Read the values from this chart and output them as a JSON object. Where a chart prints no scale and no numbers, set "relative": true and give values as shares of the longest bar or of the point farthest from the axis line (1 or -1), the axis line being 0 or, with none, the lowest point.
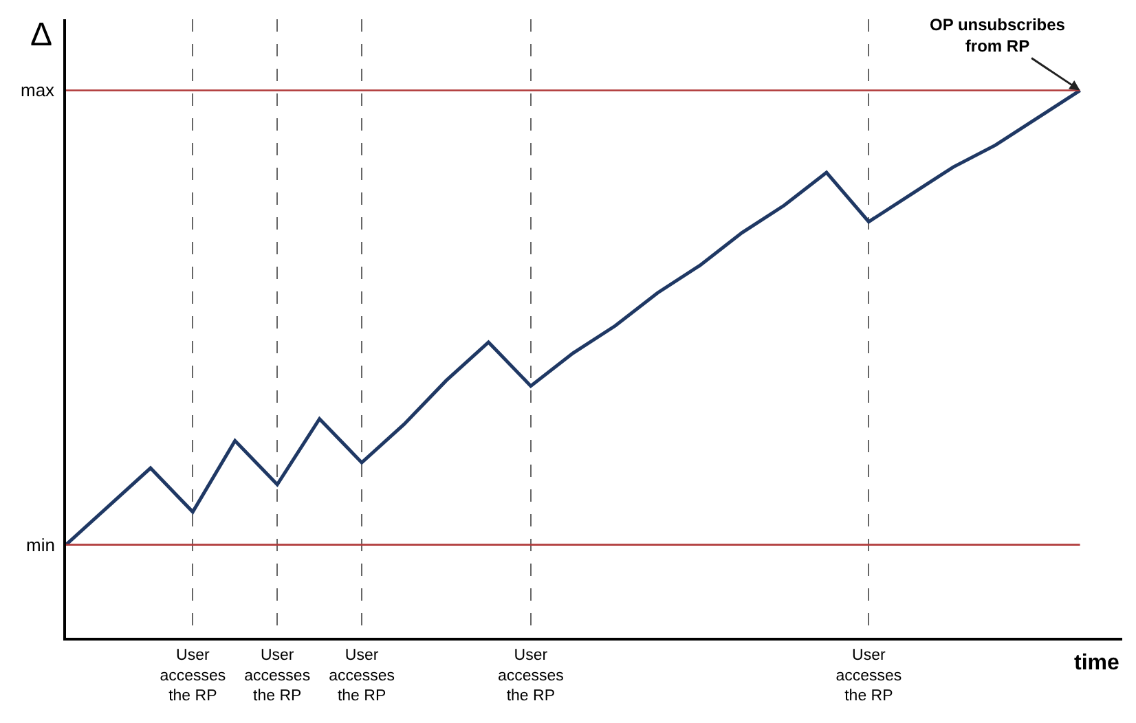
{
  "chart_data": {
    "type": "line",
    "relative": true,
    "xlabel": "time",
    "ylabel": "Δ",
    "categories": [
      null,
      null,
      null,
      "User\naccesses\nthe RP",
      null,
      "User\naccesses\nthe RP",
      null,
      "User\naccesses\nthe RP",
      null,
      null,
      null,
      "User\naccesses\nthe RP",
      null,
      null,
      null,
      null,
      null,
      null,
      null,
      "User\naccesses\nthe RP",
      null,
      null,
      null,
      null,
      null
    ],
    "series": [
      {
        "color": "#1f3864",
        "values": [
          0.17,
          0.24,
          0.31,
          0.23,
          0.36,
          0.28,
          0.4,
          0.32,
          0.39,
          0.47,
          0.54,
          0.46,
          0.52,
          0.57,
          0.63,
          0.68,
          0.74,
          0.79,
          0.85,
          0.76,
          0.81,
          0.86,
          0.9,
          0.95,
          1
        ]
      }
    ],
    "ref_lines": [
      {
        "axis": "y",
        "value": 0.17,
        "label": "min",
        "color": "#b03a3a"
      },
      {
        "axis": "y",
        "value": 1,
        "label": "max",
        "color": "#b03a3a"
      }
    ],
    "annotations": [
      "OP unsubscribes\nfrom RP"
    ],
    "tick_labels": "x",
    "grid": "x",
    "legend": false,
    "marker": "none",
    "line_style": "solid"
  }
}
